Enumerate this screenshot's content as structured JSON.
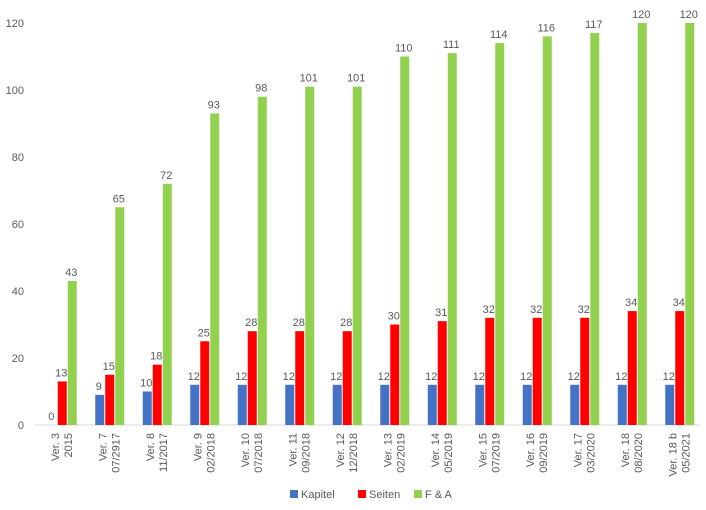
{
  "chart_data": {
    "type": "bar",
    "title": "",
    "xlabel": "",
    "ylabel": "",
    "ylim": [
      0,
      120
    ],
    "yticks": [
      0,
      20,
      40,
      60,
      80,
      100,
      120
    ],
    "grid": false,
    "legend_position": "bottom",
    "categories": [
      [
        "Ver. 3",
        "2015"
      ],
      [
        "Ver. 7",
        "07/2917"
      ],
      [
        "Ver. 8",
        "11/2017"
      ],
      [
        "Ver. 9",
        "02/2018"
      ],
      [
        "Ver. 10",
        "07/2018"
      ],
      [
        "Ver. 11",
        "09/2018"
      ],
      [
        "Ver. 12",
        "12/2018"
      ],
      [
        "Ver. 13",
        "02/2019"
      ],
      [
        "Ver. 14",
        "05/2019"
      ],
      [
        "Ver. 15",
        "07/2019"
      ],
      [
        "Ver. 16",
        "09/2019"
      ],
      [
        "Ver. 17",
        "03/2020"
      ],
      [
        "Ver. 18",
        "08/2020"
      ],
      [
        "Ver. 18 b",
        "05/2021"
      ]
    ],
    "series": [
      {
        "name": "Kapitel",
        "color": "#4472C4",
        "values": [
          0,
          9,
          10,
          12,
          12,
          12,
          12,
          12,
          12,
          12,
          12,
          12,
          12,
          12
        ]
      },
      {
        "name": "Seiten",
        "color": "#FF0000",
        "values": [
          13,
          15,
          18,
          25,
          28,
          28,
          28,
          30,
          31,
          32,
          32,
          32,
          34,
          34
        ]
      },
      {
        "name": "F & A",
        "color": "#92D050",
        "values": [
          43,
          65,
          72,
          93,
          98,
          101,
          101,
          110,
          111,
          114,
          116,
          117,
          120,
          120
        ]
      }
    ]
  }
}
